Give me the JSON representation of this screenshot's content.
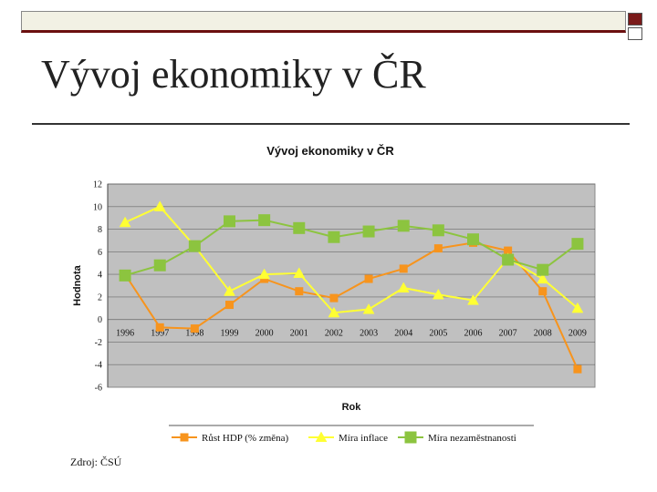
{
  "slide": {
    "title": "Vývoj ekonomiky v ČR",
    "source": "Zdroj: ČSÚ"
  },
  "colors": {
    "plot_bg": "#c0c0c0",
    "grid": "#222222",
    "gdp": "#f7941d",
    "inflation": "#ffff33",
    "unemployment": "#8cc43f",
    "accent_bar": "#6b0f0f"
  },
  "chart_data": {
    "type": "line",
    "title": "Vývoj ekonomiky v ČR",
    "xlabel": "Rok",
    "ylabel": "Hodnota",
    "x": [
      "1996",
      "1997",
      "1998",
      "1999",
      "2000",
      "2001",
      "2002",
      "2003",
      "2004",
      "2005",
      "2006",
      "2007",
      "2008",
      "2009"
    ],
    "ylim": [
      -6,
      12
    ],
    "yticks": [
      -6,
      -4,
      -2,
      0,
      2,
      4,
      6,
      8,
      10,
      12
    ],
    "grid": true,
    "legend": "bottom",
    "series": [
      {
        "name": "Růst HDP (% změna)",
        "marker": "square",
        "values": [
          4.0,
          -0.7,
          -0.8,
          1.3,
          3.6,
          2.5,
          1.9,
          3.6,
          4.5,
          6.3,
          6.8,
          6.1,
          2.5,
          -4.4
        ]
      },
      {
        "name": "Míra inflace",
        "marker": "triangle",
        "values": [
          8.6,
          10.0,
          6.5,
          2.5,
          4.0,
          4.1,
          0.6,
          0.9,
          2.8,
          2.2,
          1.7,
          5.4,
          3.6,
          1.0
        ]
      },
      {
        "name": "Míra nezaměstnanosti",
        "marker": "square",
        "values": [
          3.9,
          4.8,
          6.5,
          8.7,
          8.8,
          8.1,
          7.3,
          7.8,
          8.3,
          7.9,
          7.1,
          5.3,
          4.4,
          6.7
        ]
      }
    ]
  }
}
